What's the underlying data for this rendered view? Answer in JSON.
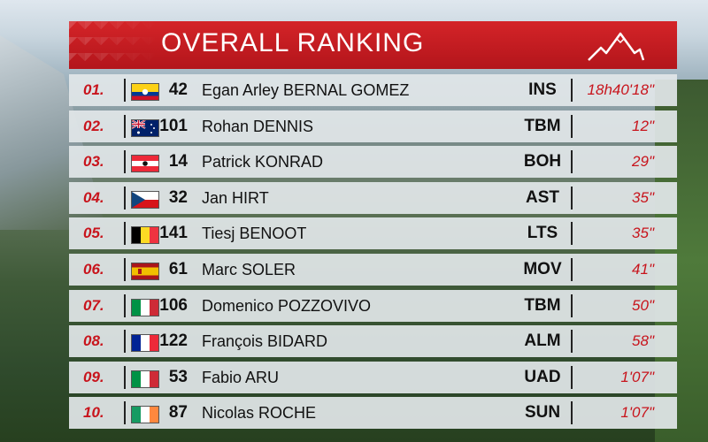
{
  "title": "OVERALL RANKING",
  "colors": {
    "accent": "#c8141c",
    "header": "#d42428"
  },
  "riders": [
    {
      "rank": "01.",
      "flag": "colombia",
      "bib": "42",
      "name": "Egan Arley BERNAL GOMEZ",
      "team": "INS",
      "time": "18h40'18\""
    },
    {
      "rank": "02.",
      "flag": "australia",
      "bib": "101",
      "name": "Rohan DENNIS",
      "team": "TBM",
      "time": "12\""
    },
    {
      "rank": "03.",
      "flag": "austria",
      "bib": "14",
      "name": "Patrick KONRAD",
      "team": "BOH",
      "time": "29\""
    },
    {
      "rank": "04.",
      "flag": "czechia",
      "bib": "32",
      "name": "Jan HIRT",
      "team": "AST",
      "time": "35\""
    },
    {
      "rank": "05.",
      "flag": "belgium",
      "bib": "141",
      "name": "Tiesj BENOOT",
      "team": "LTS",
      "time": "35\""
    },
    {
      "rank": "06.",
      "flag": "spain",
      "bib": "61",
      "name": "Marc SOLER",
      "team": "MOV",
      "time": "41\""
    },
    {
      "rank": "07.",
      "flag": "italy",
      "bib": "106",
      "name": "Domenico POZZOVIVO",
      "team": "TBM",
      "time": "50\""
    },
    {
      "rank": "08.",
      "flag": "france",
      "bib": "122",
      "name": "François BIDARD",
      "team": "ALM",
      "time": "58\""
    },
    {
      "rank": "09.",
      "flag": "italy",
      "bib": "53",
      "name": "Fabio ARU",
      "team": "UAD",
      "time": "1'07\""
    },
    {
      "rank": "10.",
      "flag": "ireland",
      "bib": "87",
      "name": "Nicolas ROCHE",
      "team": "SUN",
      "time": "1'07\""
    }
  ]
}
